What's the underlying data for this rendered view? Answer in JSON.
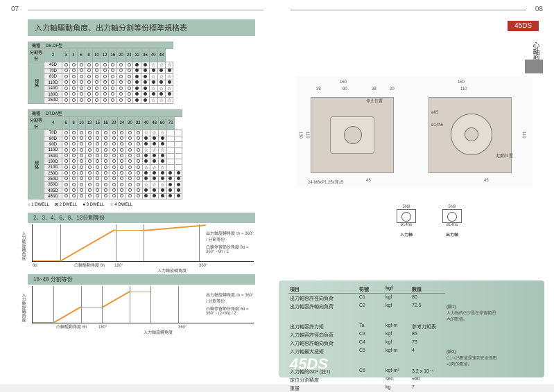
{
  "page_left_num": "07",
  "page_right_num": "08",
  "main_title": "入力軸驅動角度、出力軸分割等份標準規格表",
  "model_badge": "45DS",
  "side_type_label": "心軸型",
  "table1": {
    "group_label": "機種",
    "type_label": "DS.DF型",
    "col_header": "分割等份",
    "row_label": "規格",
    "divisions": [
      "2",
      "3",
      "4",
      "6",
      "8",
      "10",
      "12",
      "16",
      "20",
      "24",
      "32",
      "36",
      "40",
      "48"
    ],
    "models": [
      "45D",
      "70D",
      "83D",
      "110D",
      "140D",
      "180D",
      "250D"
    ]
  },
  "table2": {
    "group_label": "機種",
    "type_label": "DT.DA型",
    "col_header": "分割等份",
    "row_label": "規格",
    "divisions": [
      "4",
      "6",
      "8",
      "10",
      "12",
      "15",
      "16",
      "20",
      "24",
      "30",
      "32",
      "40",
      "48",
      "60",
      "72"
    ],
    "models": [
      "70D",
      "80D",
      "90D",
      "110D",
      "150D",
      "190D",
      "210D",
      "230D",
      "250D",
      "350D",
      "435D",
      "450D"
    ]
  },
  "legend": {
    "o1": "○ 1 DWELL",
    "o2": "⊠ 2 DWELL",
    "o3": "● 3 DWELL",
    "o4": "☆ 4 DWELL"
  },
  "chart1": {
    "title": "2、3、4、6、8、12分割等份",
    "ylabel": "入力軸旋轉角度",
    "xlabel": "入力軸旋轉角度",
    "annot1": "凸輪驅動角度 θh",
    "annot2": "凸輪停留節份角度 θd=",
    "annot3": "180°",
    "annot4": "360°",
    "f1_label": "出力軸旋轉角度",
    "f1": "τh = 360° / 分割等份",
    "f2_label": "凸輪停留節份角度",
    "f2": "θd = 360° - θh / 2"
  },
  "chart2": {
    "title": "16~48 分割等份",
    "ylabel": "入力軸旋轉角度",
    "xlabel": "入力軸旋轉角度",
    "annot1": "凸輪驅動角度 θh",
    "annot3": "180°",
    "annot4": "360°",
    "f1_label": "出力軸旋轉角度",
    "f1": "τh = 360° / 分割等份",
    "f2_label": "凸輪停留節份角度",
    "f2": "θd = 360° - (2×θh) / 2"
  },
  "drawing_dims": {
    "d160": "160",
    "d90": "90",
    "d35a": "35",
    "d35b": "35",
    "d20": "20",
    "d130": "130",
    "d110": "110",
    "d24": "24-M8xP1.25x深15",
    "d45": "45",
    "d150": "150",
    "d110b": "110",
    "d45b": "45",
    "d110c": "110",
    "d65": "ø65",
    "d14": "ø14h6",
    "d50": "ø50",
    "dpos1": "停止位置",
    "dpos2": "起動位置"
  },
  "shaft": {
    "top1": "5N9",
    "top2": "5N9",
    "dia1": "ø14h6",
    "dia2": "ø14h6",
    "l1": "入力軸",
    "l2": "出力軸"
  },
  "spec": {
    "hdr_item": "項目",
    "hdr_sym": "符號",
    "hdr_unit": "kgf",
    "hdr_val": "數值",
    "rows": [
      {
        "item": "出力軸容許徑向負荷",
        "sym": "C1",
        "unit": "kgf",
        "val": "80"
      },
      {
        "item": "出力軸容許軸向負荷",
        "sym": "C2",
        "unit": "kgf",
        "val": "72.5"
      },
      {
        "item": "出力軸容許力矩",
        "sym": "Ta",
        "unit": "kgf-m",
        "val": "參考力矩表"
      },
      {
        "item": "入力軸容許徑向負荷",
        "sym": "C3",
        "unit": "kgf",
        "val": "85"
      },
      {
        "item": "入力軸容許軸向負荷",
        "sym": "C4",
        "unit": "kgf",
        "val": "75"
      },
      {
        "item": "入力軸最大扭矩",
        "sym": "C5",
        "unit": "kgf-m",
        "val": "4"
      },
      {
        "item": "入力軸的GD² (註1)",
        "sym": "C6",
        "unit": "kgf-m²",
        "val": "3.2 x 10⁻⁴"
      },
      {
        "item": "定位分割精度",
        "sym": "",
        "unit": "sec.",
        "val": "±60"
      },
      {
        "item": "重量",
        "sym": "",
        "unit": "kg",
        "val": "7"
      }
    ],
    "note1_t": "(註1)",
    "note1": "入力軸的GD²是在停留範圍內的數值。",
    "note2_t": "(註2)",
    "note2": "C1~C5數值是速到安全係數=2時的數值。"
  }
}
